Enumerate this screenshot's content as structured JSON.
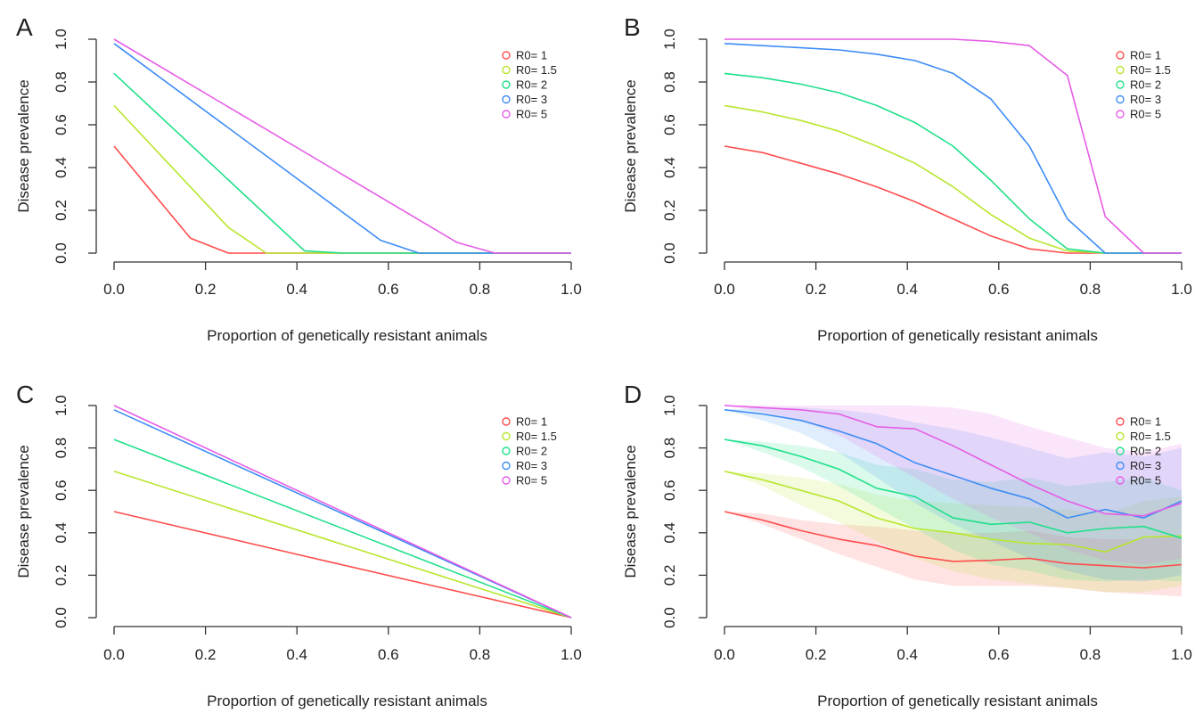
{
  "chart_data": [
    {
      "type": "line",
      "panel_label": "A",
      "xlabel": "Proportion of genetically resistant animals",
      "ylabel": "Disease prevalence",
      "xlim": [
        0,
        1
      ],
      "ylim": [
        0,
        1
      ],
      "xticks": [
        "0.0",
        "0.2",
        "0.4",
        "0.6",
        "0.8",
        "1.0"
      ],
      "yticks": [
        "0.0",
        "0.2",
        "0.4",
        "0.6",
        "0.8",
        "1.0"
      ],
      "grid": false,
      "legend_position": "top-right",
      "series": [
        {
          "name": "R0= 1",
          "color": "#ff4d4d",
          "x": [
            0,
            0.167,
            0.25,
            0.333,
            1.0
          ],
          "y": [
            0.5,
            0.07,
            0.0,
            0.0,
            0.0
          ]
        },
        {
          "name": "R0= 1.5",
          "color": "#b8e62e",
          "x": [
            0,
            0.25,
            0.333,
            1.0
          ],
          "y": [
            0.69,
            0.12,
            0.0,
            0.0
          ]
        },
        {
          "name": "R0= 2",
          "color": "#1fe08a",
          "x": [
            0,
            0.417,
            0.5,
            1.0
          ],
          "y": [
            0.84,
            0.01,
            0.0,
            0.0
          ]
        },
        {
          "name": "R0= 3",
          "color": "#3d8cf5",
          "x": [
            0,
            0.583,
            0.667,
            1.0
          ],
          "y": [
            0.98,
            0.06,
            0.0,
            0.0
          ]
        },
        {
          "name": "R0= 5",
          "color": "#e65ce6",
          "x": [
            0,
            0.75,
            0.833,
            1.0
          ],
          "y": [
            1.0,
            0.05,
            0.0,
            0.0
          ]
        }
      ]
    },
    {
      "type": "line",
      "panel_label": "B",
      "xlabel": "Proportion of genetically resistant animals",
      "ylabel": "Disease prevalence",
      "xlim": [
        0,
        1
      ],
      "ylim": [
        0,
        1
      ],
      "xticks": [
        "0.0",
        "0.2",
        "0.4",
        "0.6",
        "0.8",
        "1.0"
      ],
      "yticks": [
        "0.0",
        "0.2",
        "0.4",
        "0.6",
        "0.8",
        "1.0"
      ],
      "grid": false,
      "legend_position": "top-right",
      "series": [
        {
          "name": "R0= 1",
          "color": "#ff4d4d",
          "x": [
            0,
            0.083,
            0.167,
            0.25,
            0.333,
            0.417,
            0.5,
            0.583,
            0.667,
            0.75,
            0.833,
            1.0
          ],
          "y": [
            0.5,
            0.47,
            0.42,
            0.37,
            0.31,
            0.24,
            0.16,
            0.08,
            0.02,
            0.0,
            0.0,
            0.0
          ]
        },
        {
          "name": "R0= 1.5",
          "color": "#b8e62e",
          "x": [
            0,
            0.083,
            0.167,
            0.25,
            0.333,
            0.417,
            0.5,
            0.583,
            0.667,
            0.75,
            0.833,
            1.0
          ],
          "y": [
            0.69,
            0.66,
            0.62,
            0.57,
            0.5,
            0.42,
            0.31,
            0.18,
            0.07,
            0.01,
            0.0,
            0.0
          ]
        },
        {
          "name": "R0= 2",
          "color": "#1fe08a",
          "x": [
            0,
            0.083,
            0.167,
            0.25,
            0.333,
            0.417,
            0.5,
            0.583,
            0.667,
            0.75,
            0.833,
            1.0
          ],
          "y": [
            0.84,
            0.82,
            0.79,
            0.75,
            0.69,
            0.61,
            0.5,
            0.34,
            0.16,
            0.02,
            0.0,
            0.0
          ]
        },
        {
          "name": "R0= 3",
          "color": "#3d8cf5",
          "x": [
            0,
            0.083,
            0.167,
            0.25,
            0.333,
            0.417,
            0.5,
            0.583,
            0.667,
            0.75,
            0.833,
            0.917,
            1.0
          ],
          "y": [
            0.98,
            0.97,
            0.96,
            0.95,
            0.93,
            0.9,
            0.84,
            0.72,
            0.5,
            0.16,
            0.0,
            0.0,
            0.0
          ]
        },
        {
          "name": "R0= 5",
          "color": "#e65ce6",
          "x": [
            0,
            0.083,
            0.167,
            0.25,
            0.333,
            0.417,
            0.5,
            0.583,
            0.667,
            0.75,
            0.833,
            0.917,
            1.0
          ],
          "y": [
            1.0,
            1.0,
            1.0,
            1.0,
            1.0,
            1.0,
            1.0,
            0.99,
            0.97,
            0.83,
            0.17,
            0.0,
            0.0
          ]
        }
      ]
    },
    {
      "type": "line",
      "panel_label": "C",
      "xlabel": "Proportion of genetically resistant animals",
      "ylabel": "Disease prevalence",
      "xlim": [
        0,
        1
      ],
      "ylim": [
        0,
        1
      ],
      "xticks": [
        "0.0",
        "0.2",
        "0.4",
        "0.6",
        "0.8",
        "1.0"
      ],
      "yticks": [
        "0.0",
        "0.2",
        "0.4",
        "0.6",
        "0.8",
        "1.0"
      ],
      "grid": false,
      "legend_position": "top-right",
      "series": [
        {
          "name": "R0= 1",
          "color": "#ff4d4d",
          "x": [
            0,
            0.417,
            1.0
          ],
          "y": [
            0.5,
            0.29,
            0.0
          ]
        },
        {
          "name": "R0= 1.5",
          "color": "#b8e62e",
          "x": [
            0,
            1.0
          ],
          "y": [
            0.69,
            0.0
          ]
        },
        {
          "name": "R0= 2",
          "color": "#1fe08a",
          "x": [
            0,
            1.0
          ],
          "y": [
            0.84,
            0.0
          ]
        },
        {
          "name": "R0= 3",
          "color": "#3d8cf5",
          "x": [
            0,
            1.0
          ],
          "y": [
            0.98,
            0.0
          ]
        },
        {
          "name": "R0= 5",
          "color": "#e65ce6",
          "x": [
            0,
            1.0
          ],
          "y": [
            1.0,
            0.0
          ]
        }
      ]
    },
    {
      "type": "area",
      "panel_label": "D",
      "xlabel": "Proportion of genetically resistant animals",
      "ylabel": "Disease prevalence",
      "xlim": [
        0,
        1
      ],
      "ylim": [
        0,
        1
      ],
      "xticks": [
        "0.0",
        "0.2",
        "0.4",
        "0.6",
        "0.8",
        "1.0"
      ],
      "yticks": [
        "0.0",
        "0.2",
        "0.4",
        "0.6",
        "0.8",
        "1.0"
      ],
      "grid": false,
      "legend_position": "top-right",
      "x": [
        0,
        0.083,
        0.167,
        0.25,
        0.333,
        0.417,
        0.5,
        0.583,
        0.667,
        0.75,
        0.833,
        0.917,
        1.0
      ],
      "series": [
        {
          "name": "R0= 1",
          "color": "#ff4d4d",
          "y": [
            0.5,
            0.46,
            0.41,
            0.37,
            0.34,
            0.29,
            0.265,
            0.27,
            0.28,
            0.255,
            0.245,
            0.235,
            0.25
          ],
          "lower": [
            0.5,
            0.44,
            0.37,
            0.3,
            0.24,
            0.18,
            0.15,
            0.15,
            0.15,
            0.14,
            0.12,
            0.11,
            0.1
          ],
          "upper": [
            0.5,
            0.49,
            0.46,
            0.44,
            0.43,
            0.41,
            0.4,
            0.4,
            0.41,
            0.38,
            0.37,
            0.37,
            0.39
          ]
        },
        {
          "name": "R0= 1.5",
          "color": "#b8e62e",
          "y": [
            0.69,
            0.65,
            0.6,
            0.55,
            0.47,
            0.42,
            0.4,
            0.37,
            0.35,
            0.345,
            0.31,
            0.38,
            0.385
          ],
          "lower": [
            0.69,
            0.62,
            0.53,
            0.45,
            0.36,
            0.28,
            0.22,
            0.18,
            0.16,
            0.14,
            0.12,
            0.12,
            0.15
          ],
          "upper": [
            0.69,
            0.68,
            0.66,
            0.63,
            0.58,
            0.55,
            0.54,
            0.53,
            0.52,
            0.51,
            0.49,
            0.55,
            0.57
          ]
        },
        {
          "name": "R0= 2",
          "color": "#1fe08a",
          "y": [
            0.84,
            0.81,
            0.76,
            0.7,
            0.61,
            0.57,
            0.47,
            0.44,
            0.45,
            0.4,
            0.42,
            0.43,
            0.375
          ],
          "lower": [
            0.84,
            0.78,
            0.71,
            0.62,
            0.52,
            0.42,
            0.32,
            0.25,
            0.22,
            0.18,
            0.17,
            0.18,
            0.17
          ],
          "upper": [
            0.84,
            0.83,
            0.81,
            0.78,
            0.72,
            0.7,
            0.65,
            0.64,
            0.66,
            0.62,
            0.64,
            0.66,
            0.6
          ]
        },
        {
          "name": "R0= 3",
          "color": "#3d8cf5",
          "y": [
            0.98,
            0.96,
            0.93,
            0.88,
            0.82,
            0.73,
            0.67,
            0.61,
            0.56,
            0.47,
            0.51,
            0.47,
            0.55
          ],
          "lower": [
            0.98,
            0.93,
            0.87,
            0.78,
            0.66,
            0.54,
            0.44,
            0.36,
            0.28,
            0.22,
            0.18,
            0.17,
            0.2
          ],
          "upper": [
            0.98,
            0.99,
            0.99,
            0.98,
            0.96,
            0.92,
            0.89,
            0.85,
            0.8,
            0.75,
            0.78,
            0.76,
            0.8
          ]
        },
        {
          "name": "R0= 5",
          "color": "#e65ce6",
          "y": [
            1.0,
            0.99,
            0.98,
            0.96,
            0.9,
            0.89,
            0.81,
            0.72,
            0.63,
            0.55,
            0.49,
            0.48,
            0.54
          ],
          "lower": [
            1.0,
            0.97,
            0.93,
            0.86,
            0.76,
            0.66,
            0.56,
            0.47,
            0.4,
            0.32,
            0.27,
            0.25,
            0.28
          ],
          "upper": [
            1.0,
            1.0,
            1.0,
            1.0,
            1.0,
            1.0,
            0.99,
            0.96,
            0.9,
            0.85,
            0.8,
            0.78,
            0.82
          ]
        }
      ]
    }
  ]
}
